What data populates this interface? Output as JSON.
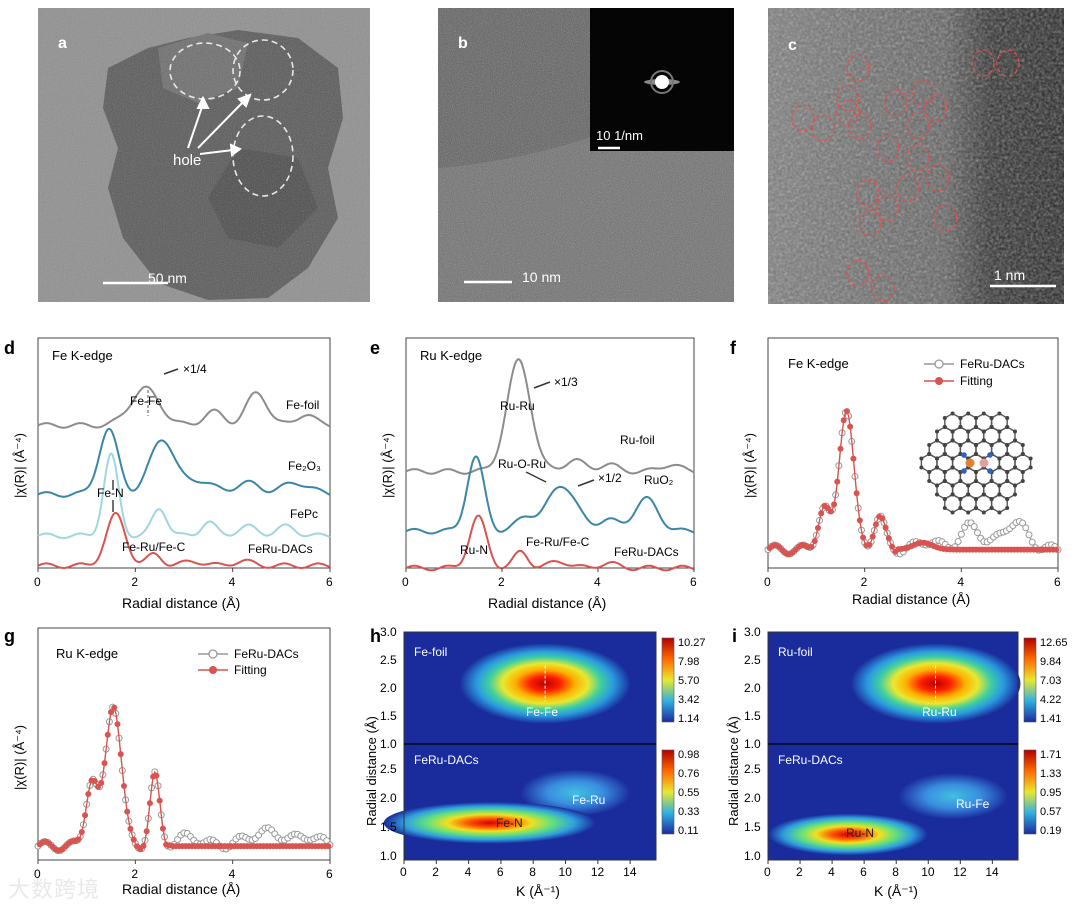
{
  "panels": {
    "a": {
      "letter": "a",
      "hole_label": "hole",
      "scale": "50 nm"
    },
    "b": {
      "letter": "b",
      "scale": "10 nm",
      "inset_scale": "10 1/nm"
    },
    "c": {
      "letter": "c",
      "scale": "1 nm"
    }
  },
  "watermark": "大数跨境",
  "chart_data": [
    {
      "id": "d",
      "type": "line",
      "letter": "d",
      "title": "Fe K-edge",
      "xlabel": "Radial distance (Å)",
      "ylabel": "|χ(R)| (Å⁻⁴)",
      "xlim": [
        0,
        6
      ],
      "xticks": [
        "0",
        "2",
        "4",
        "6"
      ],
      "series": [
        {
          "name": "Fe-foil",
          "color": "#8c8c8c",
          "offset": 0.62,
          "peaks": [
            [
              2.2,
              0.3,
              0.16
            ],
            [
              3.6,
              0.2,
              0.06
            ],
            [
              4.5,
              0.22,
              0.14
            ],
            [
              5.5,
              0.18,
              0.05
            ]
          ]
        },
        {
          "name": "Fe₂O₃",
          "color": "#3a86a8",
          "offset": 0.32,
          "peaks": [
            [
              1.45,
              0.2,
              0.28
            ],
            [
              2.55,
              0.25,
              0.24
            ],
            [
              3.3,
              0.3,
              0.06
            ],
            [
              4.3,
              0.25,
              0.05
            ],
            [
              5.3,
              0.3,
              0.05
            ]
          ]
        },
        {
          "name": "FePc",
          "color": "#9fd6df",
          "offset": 0.14,
          "peaks": [
            [
              1.5,
              0.15,
              0.35
            ],
            [
              2.5,
              0.15,
              0.12
            ],
            [
              3.5,
              0.15,
              0.06
            ],
            [
              4.3,
              0.2,
              0.04
            ],
            [
              5.1,
              0.2,
              0.04
            ]
          ]
        },
        {
          "name": "FeRu-DACs",
          "color": "#d9534f",
          "offset": 0.01,
          "peaks": [
            [
              1.6,
              0.2,
              0.22
            ],
            [
              2.4,
              0.15,
              0.05
            ],
            [
              3.2,
              0.2,
              0.02
            ],
            [
              4.2,
              0.2,
              0.02
            ]
          ]
        }
      ],
      "annotations": [
        "×1/4",
        "Fe-Fe",
        "Fe-N",
        "Fe-Ru/Fe-C"
      ]
    },
    {
      "id": "e",
      "type": "line",
      "letter": "e",
      "title": "Ru K-edge",
      "xlabel": "Radial distance (Å)",
      "ylabel": "|χ(R)| (Å⁻⁴)",
      "xlim": [
        0,
        6
      ],
      "xticks": [
        "0",
        "2",
        "4",
        "6"
      ],
      "series": [
        {
          "name": "Ru-foil",
          "color": "#8c8c8c",
          "offset": 0.42,
          "peaks": [
            [
              2.35,
              0.25,
              0.48
            ],
            [
              3.5,
              0.2,
              0.05
            ],
            [
              4.2,
              0.2,
              0.03
            ],
            [
              5.5,
              0.2,
              0.03
            ]
          ]
        },
        {
          "name": "RuO₂",
          "color": "#3a86a8",
          "offset": 0.16,
          "peaks": [
            [
              1.45,
              0.18,
              0.32
            ],
            [
              2.5,
              0.2,
              0.06
            ],
            [
              3.25,
              0.3,
              0.2
            ],
            [
              4.2,
              0.2,
              0.05
            ],
            [
              5.0,
              0.25,
              0.14
            ]
          ]
        },
        {
          "name": "FeRu-DACs",
          "color": "#d9534f",
          "offset": 0.0,
          "peaks": [
            [
              1.5,
              0.18,
              0.22
            ],
            [
              2.4,
              0.15,
              0.07
            ],
            [
              3.2,
              0.2,
              0.03
            ],
            [
              4.2,
              0.2,
              0.02
            ]
          ]
        }
      ],
      "annotations": [
        "×1/3",
        "Ru-Ru",
        "Ru-O-Ru",
        "×1/2",
        "Ru-N",
        "Fe-Ru/Fe-C"
      ]
    },
    {
      "id": "f",
      "type": "line",
      "letter": "f",
      "title": "Fe K-edge",
      "xlabel": "Radial distance (Å)",
      "ylabel": "|χ(R)| (Å⁻⁴)",
      "xlim": [
        0,
        6
      ],
      "xticks": [
        "0",
        "2",
        "4",
        "6"
      ],
      "legend": [
        "FeRu-DACs",
        "Fitting"
      ]
    },
    {
      "id": "g",
      "type": "line",
      "letter": "g",
      "title": "Ru K-edge",
      "xlabel": "Radial distance (Å)",
      "ylabel": "|χ(R)| (Å⁻⁴)",
      "xlim": [
        0,
        6
      ],
      "xticks": [
        "0",
        "2",
        "4",
        "6"
      ],
      "legend": [
        "FeRu-DACs",
        "Fitting"
      ]
    },
    {
      "id": "h",
      "type": "heatmap",
      "letter": "h",
      "xlabel": "K (Å⁻¹)",
      "ylabel": "Radial distance (Å)",
      "xticks": [
        "0",
        "2",
        "4",
        "6",
        "8",
        "10",
        "12",
        "14"
      ],
      "top": {
        "name": "Fe-foil",
        "peak_label": "Fe-Fe",
        "yticks": [
          "1.0",
          "1.5",
          "2.0",
          "2.5",
          "3.0"
        ],
        "scale": [
          "10.27",
          "7.98",
          "5.70",
          "3.42",
          "1.14"
        ]
      },
      "bottom": {
        "name": "FeRu-DACs",
        "peak_labels": [
          "Fe-N",
          "Fe-Ru"
        ],
        "yticks": [
          "1.0",
          "1.5",
          "2.0",
          "2.5"
        ],
        "scale": [
          "0.98",
          "0.76",
          "0.55",
          "0.33",
          "0.11"
        ]
      }
    },
    {
      "id": "i",
      "type": "heatmap",
      "letter": "i",
      "xlabel": "K (Å⁻¹)",
      "ylabel": "Radial distance (Å)",
      "xticks": [
        "0",
        "2",
        "4",
        "6",
        "8",
        "10",
        "12",
        "14"
      ],
      "top": {
        "name": "Ru-foil",
        "peak_label": "Ru-Ru",
        "yticks": [
          "1.0",
          "1.5",
          "2.0",
          "2.5",
          "3.0"
        ],
        "scale": [
          "12.65",
          "9.84",
          "7.03",
          "4.22",
          "1.41"
        ]
      },
      "bottom": {
        "name": "FeRu-DACs",
        "peak_labels": [
          "Ru-N",
          "Ru-Fe"
        ],
        "yticks": [
          "1.0",
          "1.5",
          "2.0",
          "2.5"
        ],
        "scale": [
          "1.71",
          "1.33",
          "0.95",
          "0.57",
          "0.19"
        ]
      }
    }
  ]
}
